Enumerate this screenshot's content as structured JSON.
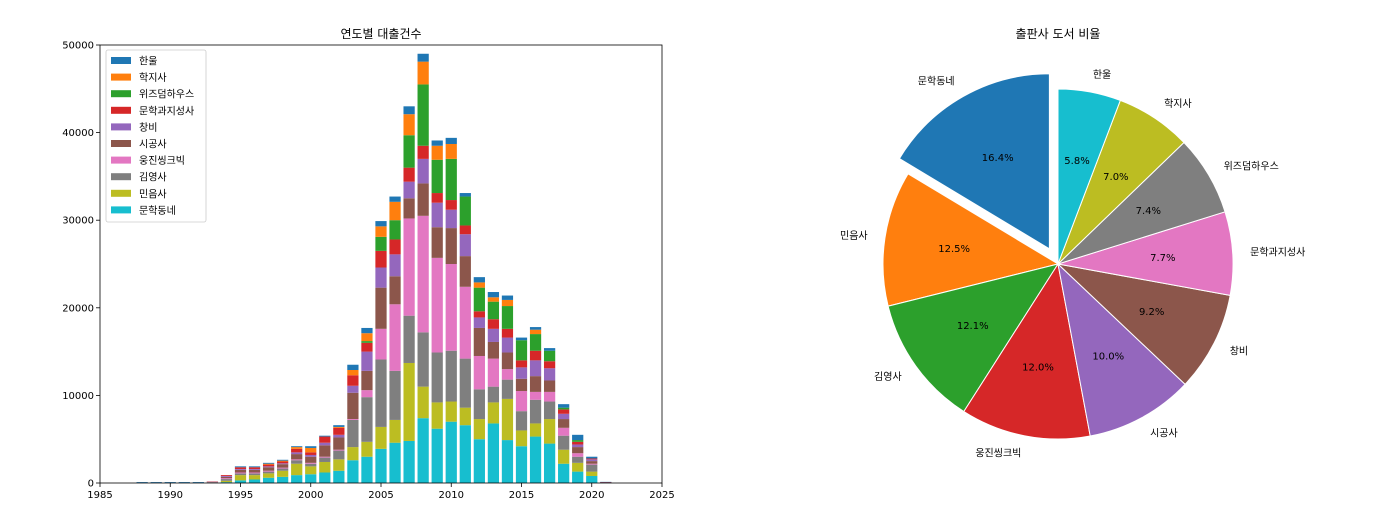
{
  "chart_data": [
    {
      "type": "bar",
      "stacked": true,
      "title": "연도별 대출건수",
      "xlabel": "",
      "ylabel": "",
      "xlim": [
        1985,
        2025
      ],
      "ylim": [
        0,
        50000
      ],
      "x_ticks": [
        1985,
        1990,
        1995,
        2000,
        2005,
        2010,
        2015,
        2020,
        2025
      ],
      "y_ticks": [
        0,
        10000,
        20000,
        30000,
        40000,
        50000
      ],
      "legend_position": "top-left",
      "x": [
        1988,
        1989,
        1990,
        1991,
        1992,
        1993,
        1994,
        1995,
        1996,
        1997,
        1998,
        1999,
        2000,
        2001,
        2002,
        2003,
        2004,
        2005,
        2006,
        2007,
        2008,
        2009,
        2010,
        2011,
        2012,
        2013,
        2014,
        2015,
        2016,
        2017,
        2018,
        2019,
        2020,
        2021
      ],
      "series": [
        {
          "name": "문학동네",
          "color": "#17becf",
          "values": [
            0,
            0,
            0,
            0,
            0,
            50,
            100,
            300,
            400,
            600,
            700,
            900,
            1000,
            1200,
            1400,
            2600,
            3000,
            3900,
            4600,
            4800,
            7400,
            6200,
            7000,
            6600,
            5000,
            6800,
            4900,
            4200,
            5300,
            4500,
            2200,
            1300,
            800,
            20
          ]
        },
        {
          "name": "민음사",
          "color": "#bcbd22",
          "values": [
            0,
            0,
            0,
            0,
            0,
            30,
            150,
            600,
            500,
            500,
            700,
            1300,
            900,
            1200,
            1300,
            1500,
            1700,
            2500,
            2600,
            8900,
            3600,
            3000,
            2300,
            2000,
            2300,
            2400,
            4700,
            1800,
            1500,
            2800,
            1600,
            1000,
            500,
            20
          ]
        },
        {
          "name": "김영사",
          "color": "#7f7f7f",
          "values": [
            0,
            0,
            0,
            0,
            0,
            20,
            200,
            200,
            200,
            200,
            250,
            400,
            300,
            500,
            1000,
            3100,
            5100,
            7700,
            5600,
            5400,
            6200,
            5700,
            5800,
            5600,
            3400,
            1800,
            2200,
            2200,
            2700,
            2000,
            1600,
            700,
            800,
            20
          ]
        },
        {
          "name": "웅진씽크빅",
          "color": "#e377c2",
          "values": [
            0,
            0,
            0,
            0,
            0,
            20,
            100,
            100,
            100,
            100,
            100,
            100,
            100,
            100,
            100,
            100,
            800,
            3500,
            7600,
            11100,
            13300,
            10800,
            9900,
            8200,
            3800,
            3200,
            1200,
            2300,
            900,
            1100,
            900,
            400,
            100,
            10
          ]
        },
        {
          "name": "시공사",
          "color": "#8c564b",
          "values": [
            0,
            0,
            0,
            0,
            0,
            20,
            150,
            300,
            300,
            400,
            400,
            600,
            700,
            1300,
            1400,
            3000,
            2200,
            4700,
            3200,
            2300,
            3700,
            3500,
            4100,
            3500,
            3200,
            1900,
            1900,
            1400,
            1800,
            1300,
            1000,
            700,
            300,
            10
          ]
        },
        {
          "name": "창비",
          "color": "#9467bd",
          "values": [
            0,
            0,
            0,
            0,
            0,
            10,
            100,
            100,
            100,
            100,
            100,
            200,
            200,
            300,
            300,
            800,
            2200,
            2300,
            2500,
            1900,
            2800,
            2800,
            2100,
            2500,
            1200,
            1500,
            1700,
            1300,
            1800,
            1400,
            600,
            300,
            200,
            10
          ]
        },
        {
          "name": "문학과지성사",
          "color": "#d62728",
          "values": [
            0,
            0,
            0,
            0,
            0,
            10,
            100,
            200,
            200,
            200,
            200,
            400,
            300,
            700,
            800,
            1200,
            1000,
            1900,
            1700,
            1600,
            1500,
            1100,
            1100,
            1000,
            700,
            1100,
            1000,
            800,
            1100,
            800,
            500,
            300,
            100,
            10
          ]
        },
        {
          "name": "위즈덤하우스",
          "color": "#2ca02c",
          "values": [
            0,
            0,
            0,
            0,
            0,
            0,
            0,
            0,
            0,
            0,
            0,
            0,
            0,
            0,
            0,
            0,
            200,
            1600,
            2200,
            3700,
            7000,
            3800,
            4700,
            3300,
            2700,
            2000,
            2600,
            2300,
            1900,
            1200,
            200,
            200,
            0,
            0
          ]
        },
        {
          "name": "학지사",
          "color": "#ff7f0e",
          "values": [
            0,
            0,
            0,
            0,
            0,
            0,
            0,
            0,
            0,
            100,
            100,
            200,
            500,
            0,
            100,
            600,
            900,
            1200,
            2100,
            2400,
            2600,
            1600,
            1700,
            0,
            600,
            500,
            700,
            0,
            500,
            0,
            0,
            0,
            0,
            0
          ]
        },
        {
          "name": "한울",
          "color": "#1f77b4",
          "values": [
            100,
            100,
            100,
            100,
            100,
            0,
            0,
            100,
            100,
            100,
            100,
            100,
            200,
            100,
            200,
            600,
            600,
            600,
            600,
            900,
            900,
            600,
            700,
            400,
            600,
            600,
            500,
            300,
            300,
            300,
            400,
            600,
            200,
            30
          ]
        }
      ]
    },
    {
      "type": "pie",
      "title": "출판사 도서 비율",
      "startangle_deg": 90,
      "counterclock": true,
      "slices": [
        {
          "label": "문학동네",
          "value": 16.4,
          "pct_label": "16.4%",
          "color": "#1f77b4",
          "explode": 0.1
        },
        {
          "label": "민음사",
          "value": 12.5,
          "pct_label": "12.5%",
          "color": "#ff7f0e",
          "explode": 0
        },
        {
          "label": "김영사",
          "value": 12.1,
          "pct_label": "12.1%",
          "color": "#2ca02c",
          "explode": 0
        },
        {
          "label": "웅진씽크빅",
          "value": 12.0,
          "pct_label": "12.0%",
          "color": "#d62728",
          "explode": 0
        },
        {
          "label": "시공사",
          "value": 10.0,
          "pct_label": "10.0%",
          "color": "#9467bd",
          "explode": 0
        },
        {
          "label": "창비",
          "value": 9.2,
          "pct_label": "9.2%",
          "color": "#8c564b",
          "explode": 0
        },
        {
          "label": "문학과지성사",
          "value": 7.7,
          "pct_label": "7.7%",
          "color": "#e377c2",
          "explode": 0
        },
        {
          "label": "위즈덤하우스",
          "value": 7.4,
          "pct_label": "7.4%",
          "color": "#7f7f7f",
          "explode": 0
        },
        {
          "label": "학지사",
          "value": 7.0,
          "pct_label": "7.0%",
          "color": "#bcbd22",
          "explode": 0
        },
        {
          "label": "한울",
          "value": 5.8,
          "pct_label": "5.8%",
          "color": "#17becf",
          "explode": 0
        }
      ]
    }
  ]
}
